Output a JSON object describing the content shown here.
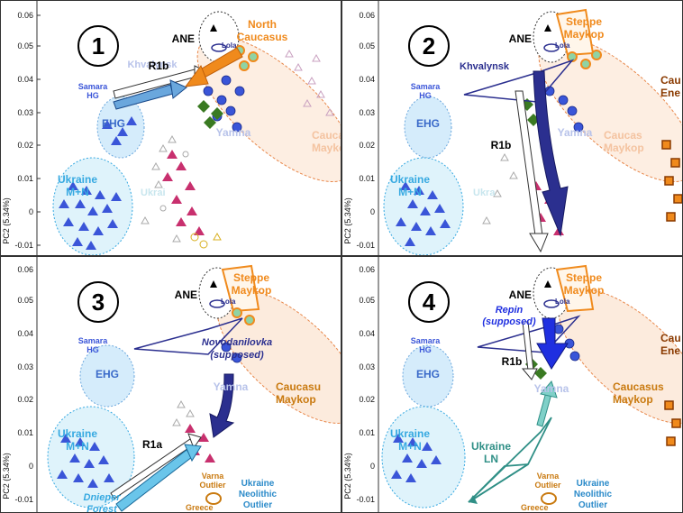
{
  "axis": {
    "ylabel": "PC2 (5.34%)",
    "yticks": [
      "0.06",
      "0.05",
      "0.04",
      "0.03",
      "0.02",
      "0.01",
      "0",
      "-0.01"
    ]
  },
  "colors": {
    "orange": "#f08a1c",
    "blue_dark": "#2b2f8f",
    "blue_mid": "#3a55d8",
    "cyan": "#36a9e1",
    "green": "#3a7a22",
    "magenta": "#c8306e",
    "teal": "#2f8f86",
    "ochre": "#c97a10"
  },
  "panels": [
    {
      "number": "1",
      "labels": {
        "ane": "ANE",
        "lola": "Lola",
        "caucasus": [
          "North",
          "Caucasus"
        ],
        "khvalynsk": "Khvalynsk",
        "r1b": "R1b",
        "samara": [
          "Samara",
          "HG"
        ],
        "ehg": "EHG",
        "yamna": "Yamna",
        "caucasus_maykop": [
          "Caucas",
          "Maykop"
        ],
        "ukraine_mn": [
          "Ukraine",
          "M+N"
        ],
        "ukraine_faded": "Ukrai"
      }
    },
    {
      "number": "2",
      "labels": {
        "ane": "ANE",
        "lola": "Lola",
        "steppe": [
          "Steppe",
          "Maykop"
        ],
        "khvalynsk": "Khvalynsk",
        "samara": [
          "Samara",
          "HG"
        ],
        "ehg": "EHG",
        "r1b": "R1b",
        "yamna": "Yamna",
        "caucasus_maykop": [
          "Caucas",
          "Maykop"
        ],
        "caucasus_ene": [
          "Cau",
          "Ene"
        ],
        "ukraine_mn": [
          "Ukraine",
          "M+N"
        ],
        "ukraine_faded": "Ukra"
      }
    },
    {
      "number": "3",
      "labels": {
        "ane": "ANE",
        "lola": "Lola",
        "steppe": [
          "Steppe",
          "Maykop"
        ],
        "samara": [
          "Samara",
          "HG"
        ],
        "novodanilovka": [
          "Novodanilovka",
          "(supposed)"
        ],
        "ehg": "EHG",
        "yamna": "Yamna",
        "caucasus_maykop": [
          "Caucasu",
          "Maykop"
        ],
        "r1a": "R1a",
        "ukraine_mn": [
          "Ukraine",
          "M+N"
        ],
        "dnieper": [
          "Dnieper",
          "Forest"
        ],
        "varna": [
          "Varna",
          "Outlier"
        ],
        "greece": "Greece",
        "ukraine_neolithic": [
          "Ukraine",
          "Neolithic",
          "Outlier"
        ]
      }
    },
    {
      "number": "4",
      "labels": {
        "ane": "ANE",
        "lola": "Lola",
        "steppe": [
          "Steppe",
          "Maykop"
        ],
        "repin": [
          "Repin",
          "(supposed)"
        ],
        "samara": [
          "Samara",
          "HG"
        ],
        "ehg": "EHG",
        "r1b": "R1b",
        "yamna": "Yamna",
        "caucasus_maykop": [
          "Caucasus",
          "Maykop"
        ],
        "caucasus_ene": [
          "Cau",
          "Ene"
        ],
        "ukraine_mn": [
          "Ukraine",
          "M+N"
        ],
        "ukraine_ln": [
          "Ukraine",
          "LN"
        ],
        "varna": [
          "Varna",
          "Outlier"
        ],
        "greece": "Greece",
        "ukraine_neolithic": [
          "Ukraine",
          "Neolithic",
          "Outlier"
        ]
      }
    }
  ]
}
